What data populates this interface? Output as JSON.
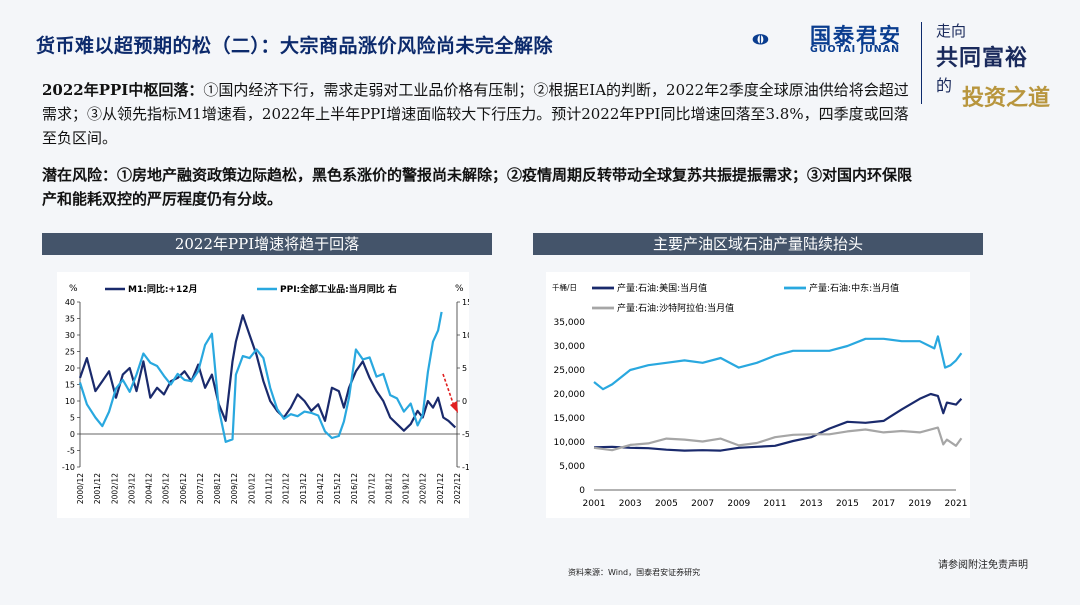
{
  "header": {
    "title": "货币难以超预期的松（二）：大宗商品涨价风险尚未完全解除",
    "logo_cn": "国泰君安",
    "logo_en": "GUOTAI JUNAN",
    "slogan_lines": [
      "走向",
      "共同富裕",
      "的",
      "投资之道"
    ]
  },
  "body": {
    "p1_lead": "2022年PPI中枢回落：",
    "p1_text": "①国内经济下行，需求走弱对工业品价格有压制；②根据EIA的判断，2022年2季度全球原油供给将会超过需求；③从领先指标M1增速看，2022年上半年PPI增速面临较大下行压力。预计2022年PPI同比增速回落至3.8%，四季度或回落至负区间。",
    "p2_lead": "潜在风险：",
    "p2_text": "①房地产融资政策边际趋松，黑色系涨价的警报尚未解除；②疫情周期反转带动全球复苏共振提振需求；③对国内环保限产和能耗双控的严厉程度仍有分歧。"
  },
  "chart_titles": {
    "left": "2022年PPI增速将趋于回落",
    "right": "主要产油区域石油产量陆续抬头"
  },
  "footer": {
    "source": "资料来源：Wind，国泰君安证券研究",
    "disclaimer": "请参阅附注免责声明"
  },
  "chart_data": [
    {
      "type": "line",
      "left_unit": "%",
      "right_unit": "%",
      "left_ylim": [
        -10,
        40
      ],
      "left_ticks": [
        -10,
        -5,
        0,
        5,
        10,
        15,
        20,
        25,
        30,
        35,
        40
      ],
      "right_ylim": [
        -10,
        15
      ],
      "right_ticks": [
        -10,
        -5,
        0,
        5,
        10,
        15
      ],
      "x_ticks": [
        "2000/12",
        "2001/12",
        "2002/12",
        "2003/12",
        "2004/12",
        "2005/12",
        "2006/12",
        "2007/12",
        "2008/12",
        "2009/12",
        "2010/12",
        "2011/12",
        "2012/12",
        "2013/12",
        "2014/12",
        "2015/12",
        "2016/12",
        "2017/12",
        "2018/12",
        "2019/12",
        "2020/12",
        "2021/12",
        "2022/12"
      ],
      "series": [
        {
          "name": "M1:同比:+12月",
          "axis": "left",
          "color": "#1a2a6c",
          "x": [
            2000.9,
            2001.3,
            2001.8,
            2002.2,
            2002.6,
            2003.0,
            2003.4,
            2003.8,
            2004.2,
            2004.6,
            2005.0,
            2005.4,
            2005.8,
            2006.2,
            2006.6,
            2007.0,
            2007.4,
            2007.8,
            2008.2,
            2008.6,
            2009.0,
            2009.4,
            2009.8,
            2010.0,
            2010.4,
            2010.8,
            2011.2,
            2011.6,
            2012.0,
            2012.4,
            2012.8,
            2013.2,
            2013.6,
            2014.0,
            2014.4,
            2014.8,
            2015.2,
            2015.6,
            2016.0,
            2016.3,
            2016.6,
            2017.0,
            2017.4,
            2017.8,
            2018.2,
            2018.6,
            2019.0,
            2019.4,
            2019.8,
            2020.2,
            2020.6,
            2020.9,
            2021.2,
            2021.5,
            2021.8,
            2022.1,
            2022.4,
            2022.8
          ],
          "y": [
            17,
            23,
            13,
            16,
            19,
            11,
            18,
            20,
            13,
            22,
            11,
            14,
            12,
            16,
            17,
            19,
            16,
            21,
            14,
            18,
            9,
            4,
            22,
            28,
            36,
            30,
            24,
            16,
            10,
            7,
            5,
            8,
            12,
            10,
            7,
            9,
            4,
            14,
            13,
            8,
            14,
            19,
            22,
            17,
            13,
            10,
            5,
            3,
            1,
            3,
            7,
            5,
            10,
            8,
            11,
            5,
            4,
            2
          ]
        },
        {
          "name": "PPI:全部工业品:当月同比 右",
          "axis": "right",
          "color": "#29a8df",
          "x": [
            2000.9,
            2001.3,
            2001.8,
            2002.2,
            2002.6,
            2003.0,
            2003.4,
            2003.8,
            2004.2,
            2004.6,
            2005.0,
            2005.4,
            2005.8,
            2006.2,
            2006.6,
            2007.0,
            2007.4,
            2007.8,
            2008.2,
            2008.6,
            2009.0,
            2009.4,
            2009.8,
            2010.0,
            2010.4,
            2010.8,
            2011.2,
            2011.6,
            2012.0,
            2012.4,
            2012.8,
            2013.2,
            2013.6,
            2014.0,
            2014.4,
            2014.8,
            2015.2,
            2015.6,
            2016.0,
            2016.3,
            2016.6,
            2017.0,
            2017.4,
            2017.8,
            2018.2,
            2018.6,
            2019.0,
            2019.4,
            2019.8,
            2020.2,
            2020.6,
            2020.9,
            2021.2,
            2021.5,
            2021.8,
            2022.0
          ],
          "y": [
            2.8,
            -0.5,
            -2.5,
            -3.8,
            -1.6,
            1.9,
            3.2,
            1.4,
            4.0,
            7.2,
            5.8,
            5.3,
            3.8,
            2.5,
            4.1,
            3.2,
            3.0,
            4.5,
            8.5,
            10.2,
            -1.2,
            -6.2,
            -5.8,
            4.0,
            6.8,
            6.5,
            7.8,
            6.5,
            2.0,
            -1.2,
            -2.7,
            -2.0,
            -2.3,
            -1.6,
            -1.8,
            -2.2,
            -4.6,
            -5.6,
            -5.3,
            -3.1,
            0.5,
            7.8,
            6.3,
            6.6,
            3.7,
            4.1,
            0.9,
            0.4,
            -1.6,
            -0.4,
            -3.7,
            -2.1,
            4.4,
            9.0,
            10.7,
            13.5
          ]
        }
      ]
    },
    {
      "type": "line",
      "unit": "千桶/日",
      "ylim": [
        0,
        35000
      ],
      "y_ticks": [
        0,
        5000,
        10000,
        15000,
        20000,
        25000,
        30000,
        35000
      ],
      "x_ticks": [
        2001,
        2003,
        2005,
        2007,
        2009,
        2011,
        2013,
        2015,
        2017,
        2019,
        2021
      ],
      "xlim": [
        2001,
        2021
      ],
      "series": [
        {
          "name": "产量:石油:美国:当月值",
          "color": "#1a2a6c",
          "x": [
            2001,
            2002,
            2003,
            2004,
            2005,
            2006,
            2007,
            2008,
            2009,
            2010,
            2011,
            2012,
            2013,
            2014,
            2015,
            2016,
            2017,
            2018,
            2019,
            2019.6,
            2020.0,
            2020.3,
            2020.5,
            2021.0,
            2021.3
          ],
          "y": [
            8900,
            9000,
            8800,
            8700,
            8400,
            8200,
            8300,
            8200,
            8800,
            9000,
            9200,
            10200,
            11000,
            12800,
            14200,
            14000,
            14400,
            16800,
            19000,
            20000,
            19600,
            16000,
            18200,
            17800,
            19000
          ]
        },
        {
          "name": "产量:石油:中东:当月值",
          "color": "#29a8df",
          "x": [
            2001,
            2001.5,
            2002,
            2003,
            2004,
            2005,
            2006,
            2007,
            2008,
            2009,
            2010,
            2011,
            2012,
            2013,
            2014,
            2015,
            2016,
            2017,
            2018,
            2019,
            2019.8,
            2020.0,
            2020.4,
            2020.7,
            2021.0,
            2021.3
          ],
          "y": [
            22500,
            21000,
            22000,
            25000,
            26000,
            26500,
            27000,
            26500,
            27500,
            25500,
            26500,
            28000,
            29000,
            29000,
            29000,
            30000,
            31500,
            31500,
            31000,
            31000,
            29500,
            32000,
            25500,
            26000,
            27000,
            28500
          ]
        },
        {
          "name": "产量:石油:沙特阿拉伯:当月值",
          "color": "#a6a6a6",
          "x": [
            2001,
            2002,
            2003,
            2004,
            2005,
            2006,
            2007,
            2008,
            2009,
            2010,
            2011,
            2012,
            2013,
            2014,
            2015,
            2016,
            2017,
            2018,
            2019,
            2020.0,
            2020.3,
            2020.5,
            2021.0,
            2021.3
          ],
          "y": [
            8800,
            8300,
            9400,
            9700,
            10700,
            10500,
            10100,
            10700,
            9300,
            9800,
            11000,
            11500,
            11600,
            11600,
            12200,
            12600,
            12000,
            12300,
            12000,
            13000,
            9500,
            10500,
            9200,
            10800
          ]
        }
      ]
    }
  ]
}
